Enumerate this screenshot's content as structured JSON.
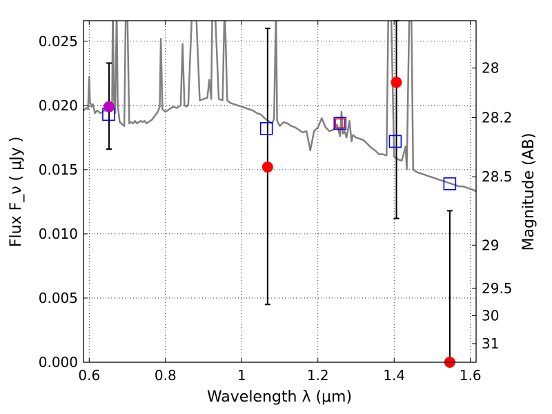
{
  "chart_data": {
    "type": "scatter",
    "title": "",
    "xlabel": "Wavelength  λ (μm)",
    "ylabel": "Flux  F_ν  ( μJy )",
    "y2label": "Magnitude (AB)",
    "xlim": [
      0.585,
      1.615
    ],
    "ylim": [
      0.0,
      0.0266
    ],
    "grid": true,
    "x_ticks": [
      0.6,
      0.8,
      1.0,
      1.2,
      1.4,
      1.6
    ],
    "x_tick_labels": [
      "0.6",
      "0.8",
      "1",
      "1.2",
      "1.4",
      "1.6"
    ],
    "y_ticks": [
      0.0,
      0.005,
      0.01,
      0.015,
      0.02,
      0.025
    ],
    "y_tick_labels": [
      "0.000",
      "0.005",
      "0.010",
      "0.015",
      "0.020",
      "0.025"
    ],
    "y2_ticks": [
      {
        "label": "28",
        "flux": 0.02291
      },
      {
        "label": "28.2",
        "flux": 0.01905
      },
      {
        "label": "28.5",
        "flux": 0.01445
      },
      {
        "label": "29",
        "flux": 0.00912
      },
      {
        "label": "29.5",
        "flux": 0.00575
      },
      {
        "label": "30",
        "flux": 0.00363
      },
      {
        "label": "31",
        "flux": 0.00145
      }
    ],
    "template_spectrum": {
      "color": "#808080",
      "x": [
        0.585,
        0.592,
        0.597,
        0.6,
        0.602,
        0.606,
        0.61,
        0.615,
        0.62,
        0.625,
        0.63,
        0.64,
        0.65,
        0.655,
        0.66,
        0.662,
        0.665,
        0.668,
        0.672,
        0.675,
        0.68,
        0.684,
        0.688,
        0.692,
        0.696,
        0.7,
        0.705,
        0.71,
        0.715,
        0.72,
        0.725,
        0.73,
        0.735,
        0.74,
        0.745,
        0.75,
        0.755,
        0.76,
        0.765,
        0.77,
        0.775,
        0.78,
        0.785,
        0.788,
        0.792,
        0.8,
        0.81,
        0.82,
        0.83,
        0.84,
        0.845,
        0.85,
        0.855,
        0.86,
        0.87,
        0.88,
        0.89,
        0.9,
        0.91,
        0.915,
        0.92,
        0.923,
        0.93,
        0.94,
        0.95,
        0.955,
        0.958,
        0.962,
        0.97,
        0.98,
        0.99,
        1.0,
        1.01,
        1.02,
        1.03,
        1.04,
        1.05,
        1.06,
        1.08,
        1.085,
        1.09,
        1.093,
        1.1,
        1.11,
        1.12,
        1.13,
        1.14,
        1.15,
        1.16,
        1.17,
        1.18,
        1.19,
        1.2,
        1.21,
        1.22,
        1.23,
        1.24,
        1.25,
        1.258,
        1.262,
        1.265,
        1.27,
        1.275,
        1.28,
        1.283,
        1.288,
        1.292,
        1.3,
        1.31,
        1.32,
        1.33,
        1.34,
        1.35,
        1.36,
        1.37,
        1.38,
        1.385,
        1.392,
        1.4,
        1.41,
        1.42,
        1.43,
        1.433,
        1.44,
        1.445,
        1.45,
        1.46,
        1.47,
        1.48,
        1.49,
        1.5,
        1.51,
        1.52,
        1.53,
        1.54,
        1.55,
        1.56,
        1.57,
        1.58,
        1.59,
        1.6,
        1.61,
        1.615
      ],
      "y": [
        0.0196,
        0.0198,
        0.0197,
        0.0222,
        0.0203,
        0.0199,
        0.0201,
        0.0194,
        0.0196,
        0.0195,
        0.0194,
        0.0196,
        0.0197,
        0.0196,
        0.0196,
        0.0275,
        0.0205,
        0.0194,
        0.0275,
        0.02,
        0.0187,
        0.0186,
        0.0185,
        0.0184,
        0.0275,
        0.0275,
        0.0186,
        0.0187,
        0.0186,
        0.0188,
        0.0186,
        0.0187,
        0.0188,
        0.0187,
        0.0188,
        0.0186,
        0.0187,
        0.0188,
        0.0189,
        0.0191,
        0.0193,
        0.0195,
        0.0199,
        0.0252,
        0.0197,
        0.0195,
        0.0197,
        0.0199,
        0.0198,
        0.02,
        0.0248,
        0.02,
        0.0199,
        0.0201,
        0.0275,
        0.0275,
        0.0204,
        0.0205,
        0.0206,
        0.022,
        0.0205,
        0.0275,
        0.0275,
        0.0205,
        0.0204,
        0.0275,
        0.025,
        0.0204,
        0.0202,
        0.0201,
        0.02,
        0.0199,
        0.0198,
        0.0197,
        0.0196,
        0.0194,
        0.0193,
        0.019,
        0.0186,
        0.019,
        0.0275,
        0.0188,
        0.0184,
        0.0187,
        0.0186,
        0.0184,
        0.0183,
        0.0181,
        0.0179,
        0.018,
        0.0165,
        0.018,
        0.0183,
        0.019,
        0.0183,
        0.018,
        0.0181,
        0.0185,
        0.0176,
        0.0195,
        0.0178,
        0.018,
        0.0175,
        0.0183,
        0.0188,
        0.0172,
        0.0177,
        0.0175,
        0.0174,
        0.0173,
        0.017,
        0.0167,
        0.0165,
        0.0162,
        0.0162,
        0.0161,
        0.0275,
        0.0275,
        0.016,
        0.0158,
        0.0157,
        0.0168,
        0.015,
        0.0275,
        0.0275,
        0.015,
        0.0148,
        0.0147,
        0.0146,
        0.0145,
        0.0144,
        0.0143,
        0.0142,
        0.0141,
        0.014,
        0.0139,
        0.0138,
        0.0137,
        0.0137,
        0.0136,
        0.0135,
        0.0134,
        0.0133
      ]
    },
    "series": [
      {
        "name": "",
        "marker": "open-square",
        "color": "#0000ff",
        "x": [
          0.651,
          1.065,
          1.258,
          1.403,
          1.546
        ],
        "y": [
          0.0193,
          0.0182,
          0.0186,
          0.0172,
          0.0139
        ]
      },
      {
        "name": "",
        "marker": "open-square",
        "color": "#ff0000",
        "x": [
          1.258
        ],
        "y": [
          0.0186
        ]
      },
      {
        "name": "",
        "marker": "filled-circle",
        "color": "#ff0000",
        "x": [
          1.068,
          1.406,
          1.546
        ],
        "y": [
          0.0152,
          0.0218,
          0.0
        ]
      },
      {
        "name": "",
        "marker": "filled-circle",
        "color": "#c000c0",
        "x": [
          0.652
        ],
        "y": [
          0.0199
        ]
      }
    ],
    "error_bars": [
      {
        "x": 0.652,
        "y_low": 0.0166,
        "y_high": 0.0233
      },
      {
        "x": 1.068,
        "y_low": 0.0045,
        "y_high": 0.026
      },
      {
        "x": 1.406,
        "y_low": 0.0112,
        "y_high": 0.0266
      },
      {
        "x": 1.546,
        "y_low": 0.0,
        "y_high": 0.0118
      }
    ]
  }
}
